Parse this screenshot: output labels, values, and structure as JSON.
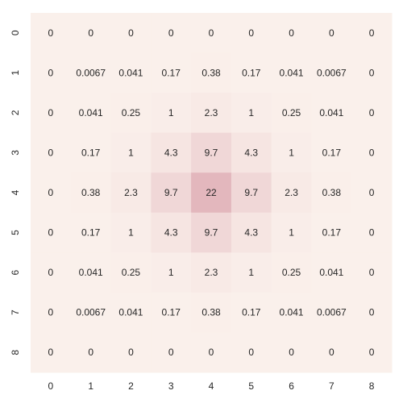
{
  "chart_data": {
    "type": "heatmap",
    "title": "",
    "xlabel": "",
    "ylabel": "",
    "x_categories": [
      "0",
      "1",
      "2",
      "3",
      "4",
      "5",
      "6",
      "7",
      "8"
    ],
    "y_categories": [
      "0",
      "1",
      "2",
      "3",
      "4",
      "5",
      "6",
      "7",
      "8"
    ],
    "values": [
      [
        0,
        0,
        0,
        0,
        0,
        0,
        0,
        0,
        0
      ],
      [
        0,
        0.0067,
        0.041,
        0.17,
        0.38,
        0.17,
        0.041,
        0.0067,
        0
      ],
      [
        0,
        0.041,
        0.25,
        1,
        2.3,
        1,
        0.25,
        0.041,
        0
      ],
      [
        0,
        0.17,
        1,
        4.3,
        9.7,
        4.3,
        1,
        0.17,
        0
      ],
      [
        0,
        0.38,
        2.3,
        9.7,
        22,
        9.7,
        2.3,
        0.38,
        0
      ],
      [
        0,
        0.17,
        1,
        4.3,
        9.7,
        4.3,
        1,
        0.17,
        0
      ],
      [
        0,
        0.041,
        0.25,
        1,
        2.3,
        1,
        0.25,
        0.041,
        0
      ],
      [
        0,
        0.0067,
        0.041,
        0.17,
        0.38,
        0.17,
        0.041,
        0.0067,
        0
      ],
      [
        0,
        0,
        0,
        0,
        0,
        0,
        0,
        0,
        0
      ]
    ],
    "annotations_shown": true,
    "colorbar": false,
    "grid": false,
    "color_scale": {
      "low": "#faf0eb",
      "high": "#e3b7bd",
      "min": 0,
      "max": 22
    }
  }
}
